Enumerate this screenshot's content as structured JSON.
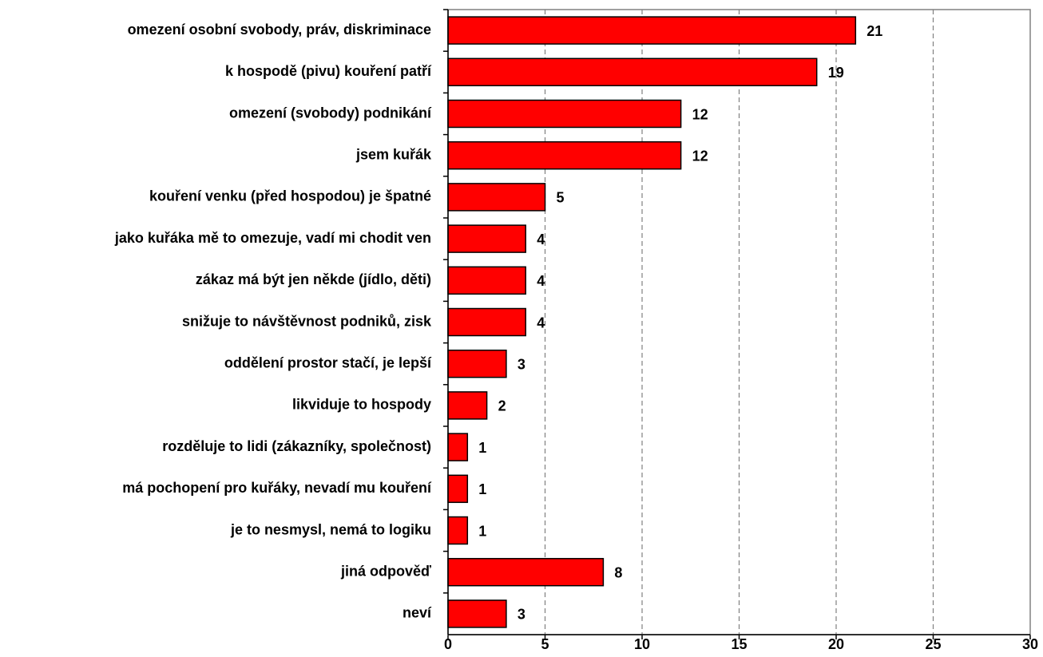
{
  "chart_data": {
    "type": "bar",
    "orientation": "horizontal",
    "categories": [
      "omezení osobní svobody, práv, diskriminace",
      "k hospodě (pivu) kouření patří",
      "omezení (svobody) podnikání",
      "jsem kuřák",
      "kouření venku (před hospodou) je špatné",
      "jako kuřáka mě to omezuje, vadí mi chodit ven",
      "zákaz má být jen někde (jídlo, děti)",
      "snižuje to návštěvnost podniků, zisk",
      "oddělení prostor stačí, je lepší",
      "likviduje to hospody",
      "rozděluje to lidi (zákazníky, společnost)",
      "má pochopení pro kuřáky, nevadí mu kouření",
      "je to nesmysl, nemá to logiku",
      "jiná odpověď",
      "neví"
    ],
    "values": [
      21,
      19,
      12,
      12,
      5,
      4,
      4,
      4,
      3,
      2,
      1,
      1,
      1,
      8,
      3
    ],
    "color": "#ff0000",
    "xlim": [
      0,
      30
    ],
    "xticks": [
      0,
      5,
      10,
      15,
      20,
      25,
      30
    ],
    "grid": true
  }
}
